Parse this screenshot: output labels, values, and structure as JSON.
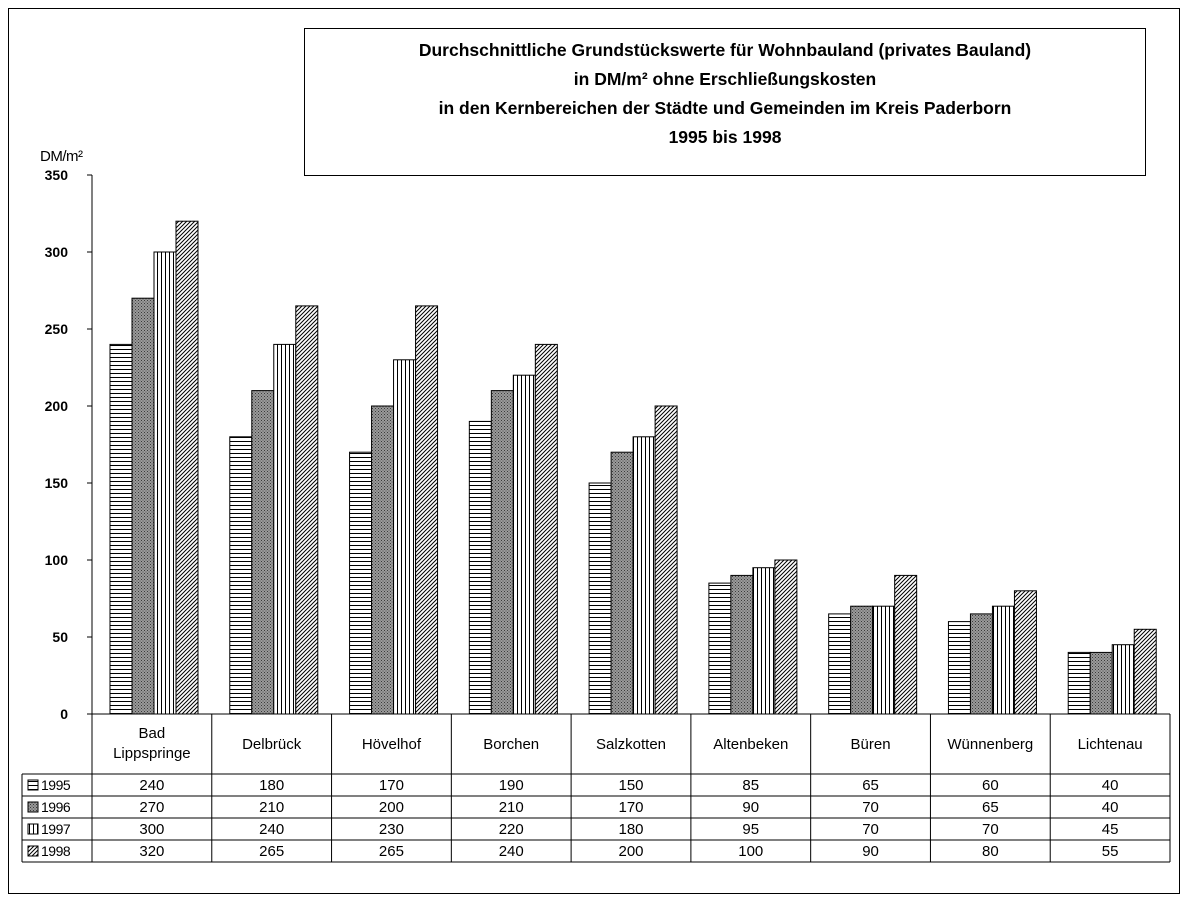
{
  "chart_data": {
    "type": "bar",
    "title": [
      "Durchschnittliche Grundstückswerte für Wohnbauland (privates Bauland)",
      "in DM/m² ohne Erschließungskosten",
      "in den Kernbereichen der Städte und Gemeinden im Kreis Paderborn",
      "1995 bis 1998"
    ],
    "ylabel": "DM/m²",
    "ylim": [
      0,
      350
    ],
    "yticks": [
      "0",
      "50",
      "100",
      "150",
      "200",
      "250",
      "300",
      "350"
    ],
    "grid": false,
    "legend": "data table, left",
    "categories": [
      [
        "Bad",
        "Lippspringe"
      ],
      [
        "Delbrück"
      ],
      [
        "Hövelhof"
      ],
      [
        "Borchen"
      ],
      [
        "Salzkotten"
      ],
      [
        "Altenbeken"
      ],
      [
        "Büren"
      ],
      [
        "Wünnenberg"
      ],
      [
        "Lichtenau"
      ]
    ],
    "series": [
      {
        "name": "1995",
        "pattern": "horizontal-lines",
        "values": [
          240,
          180,
          170,
          190,
          150,
          85,
          65,
          60,
          40
        ]
      },
      {
        "name": "1996",
        "pattern": "dots",
        "values": [
          270,
          210,
          200,
          210,
          170,
          90,
          70,
          65,
          40
        ]
      },
      {
        "name": "1997",
        "pattern": "vertical-lines",
        "values": [
          300,
          240,
          230,
          220,
          180,
          95,
          70,
          70,
          45
        ]
      },
      {
        "name": "1998",
        "pattern": "diagonal-lines",
        "values": [
          320,
          265,
          265,
          240,
          200,
          100,
          90,
          80,
          55
        ]
      }
    ]
  }
}
